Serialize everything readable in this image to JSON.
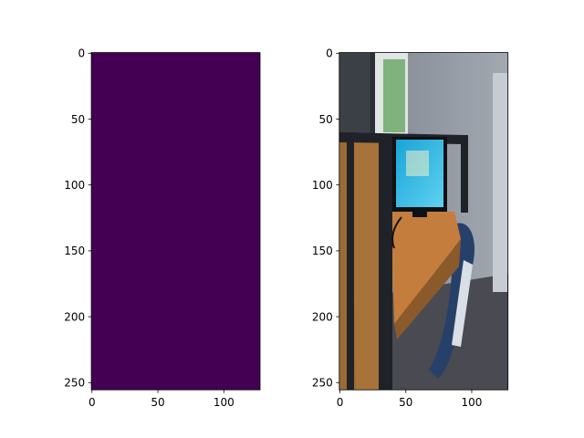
{
  "chart_data": [
    {
      "type": "heatmap",
      "title": "",
      "xlabel": "",
      "ylabel": "",
      "image_shape": [
        256,
        128
      ],
      "xlim": [
        0,
        128
      ],
      "ylim": [
        256,
        0
      ],
      "y_inverted": true,
      "xticks": [
        0,
        50,
        100
      ],
      "yticks": [
        0,
        50,
        100,
        150,
        200,
        250
      ],
      "fill_color": "#440154",
      "colormap": "viridis",
      "values": "uniform"
    },
    {
      "type": "heatmap",
      "title": "",
      "xlabel": "",
      "ylabel": "",
      "image_shape": [
        256,
        128
      ],
      "xlim": [
        0,
        128
      ],
      "ylim": [
        256,
        0
      ],
      "y_inverted": true,
      "xticks": [
        0,
        50,
        100
      ],
      "yticks": [
        0,
        50,
        100,
        150,
        200,
        250
      ],
      "content": "photo",
      "palette": {
        "wall": "#8d949c",
        "window": "#dfe6e4",
        "foliage": "#6ea86a",
        "partition_frame": "#1f2228",
        "panel_wood": "#9c6a34",
        "desk_wood": "#c47d3d",
        "monitor_bezel": "#0f1114",
        "monitor_screen": "#2fb2d6",
        "chair": "#27406a",
        "floor": "#4a4a52"
      }
    }
  ]
}
